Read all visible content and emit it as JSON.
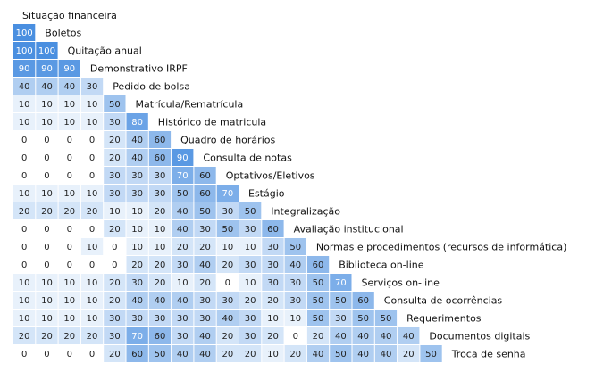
{
  "chart_data": {
    "type": "heatmap",
    "title": "Situação financeira",
    "labels": [
      "Boletos",
      "Quitação anual",
      "Demonstrativo IRPF",
      "Pedido de bolsa",
      "Matrícula/Rematrícula",
      "Histórico de matricula",
      "Quadro de horários",
      "Consulta de notas",
      "Optativos/Eletivos",
      "Estágio",
      "Integralização",
      "Avaliação institucional",
      "Normas e procedimentos (recursos de informática)",
      "Biblioteca on-line",
      "Serviços on-line",
      "Consulta de ocorrências",
      "Requerimentos",
      "Documentos digitais",
      "Troca de senha"
    ],
    "rows": [
      [
        100
      ],
      [
        100,
        100
      ],
      [
        90,
        90,
        90
      ],
      [
        40,
        40,
        40,
        30
      ],
      [
        10,
        10,
        10,
        10,
        50
      ],
      [
        10,
        10,
        10,
        10,
        30,
        80
      ],
      [
        0,
        0,
        0,
        0,
        20,
        40,
        60
      ],
      [
        0,
        0,
        0,
        0,
        20,
        40,
        60,
        90
      ],
      [
        0,
        0,
        0,
        0,
        30,
        30,
        30,
        70,
        60
      ],
      [
        10,
        10,
        10,
        10,
        30,
        30,
        30,
        50,
        60,
        70
      ],
      [
        20,
        20,
        20,
        20,
        10,
        10,
        20,
        40,
        50,
        30,
        50
      ],
      [
        0,
        0,
        0,
        0,
        20,
        10,
        10,
        40,
        30,
        50,
        30,
        60
      ],
      [
        0,
        0,
        0,
        10,
        0,
        10,
        10,
        20,
        20,
        10,
        10,
        30,
        50
      ],
      [
        0,
        0,
        0,
        0,
        0,
        20,
        20,
        30,
        40,
        20,
        30,
        30,
        40,
        60
      ],
      [
        10,
        10,
        10,
        10,
        20,
        30,
        20,
        10,
        20,
        0,
        10,
        30,
        30,
        50,
        70
      ],
      [
        10,
        10,
        10,
        10,
        20,
        40,
        40,
        40,
        30,
        30,
        20,
        20,
        30,
        50,
        50,
        60
      ],
      [
        10,
        10,
        10,
        10,
        30,
        30,
        30,
        30,
        30,
        40,
        30,
        10,
        10,
        50,
        30,
        50,
        50
      ],
      [
        20,
        20,
        20,
        20,
        30,
        70,
        60,
        30,
        40,
        20,
        30,
        20,
        0,
        20,
        40,
        40,
        40,
        40
      ],
      [
        0,
        0,
        0,
        0,
        20,
        60,
        50,
        40,
        40,
        20,
        20,
        10,
        20,
        40,
        50,
        40,
        40,
        20,
        50
      ]
    ],
    "value_range": [
      0,
      100
    ],
    "colors": {
      "low": "#ffffff",
      "high": "#4a8fe0",
      "text_dark": "#222222",
      "text_light": "#ffffff"
    },
    "legend": "none",
    "grid": false
  }
}
